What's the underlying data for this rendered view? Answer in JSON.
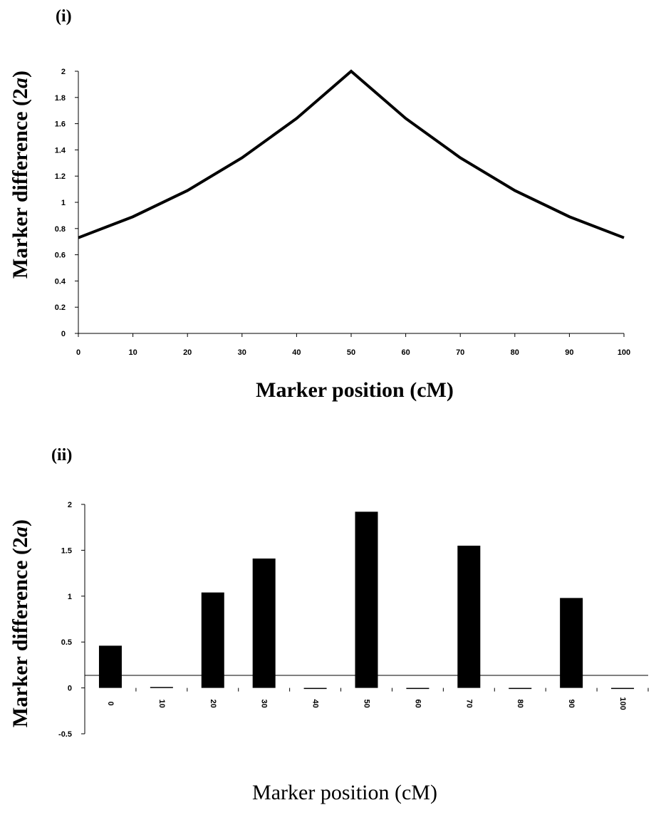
{
  "chart_data": [
    {
      "type": "line",
      "panel_label": "(i)",
      "xlabel": "Marker position (cM)",
      "ylabel": "Marker difference (2a)",
      "ylabel_parts": [
        "Marker difference (2",
        "a",
        ")"
      ],
      "x": [
        0,
        10,
        20,
        30,
        40,
        50,
        60,
        70,
        80,
        90,
        100
      ],
      "y": [
        0.73,
        0.89,
        1.09,
        1.34,
        1.64,
        2.0,
        1.64,
        1.34,
        1.09,
        0.89,
        0.73
      ],
      "xlim": [
        0,
        100
      ],
      "ylim": [
        0,
        2
      ],
      "xticks": [
        "0",
        "10",
        "20",
        "30",
        "40",
        "50",
        "60",
        "70",
        "80",
        "90",
        "100"
      ],
      "yticks": [
        "0",
        "0.2",
        "0.4",
        "0.6",
        "0.8",
        "1",
        "1.2",
        "1.4",
        "1.6",
        "1.8",
        "2"
      ],
      "grid": false,
      "legend": "none"
    },
    {
      "type": "bar",
      "panel_label": "(ii)",
      "xlabel": "Marker position (cM)",
      "ylabel": "Marker difference (2a)",
      "ylabel_parts": [
        "Marker difference (2",
        "a",
        ")"
      ],
      "categories": [
        "0",
        "10",
        "20",
        "30",
        "40",
        "50",
        "60",
        "70",
        "80",
        "90",
        "100"
      ],
      "values": [
        0.46,
        0.01,
        1.04,
        1.41,
        0.0,
        1.92,
        -0.01,
        1.55,
        -0.01,
        0.98,
        -0.01
      ],
      "ylim": [
        -0.5,
        2
      ],
      "yticks": [
        "-0.5",
        "0",
        "0.5",
        "1",
        "1.5",
        "2"
      ],
      "grid": false,
      "legend": "none"
    }
  ]
}
